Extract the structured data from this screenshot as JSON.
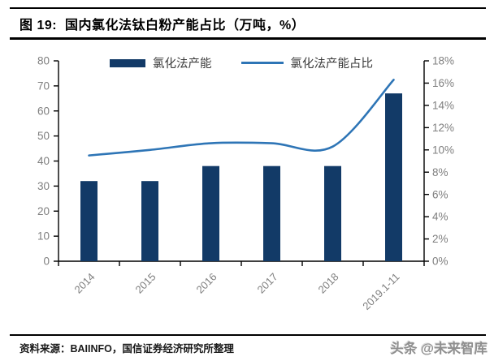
{
  "figure": {
    "title": "图 19:  国内氯化法钛白粉产能占比（万吨，%）",
    "source_note": "资料来源：BAIINFO，国信证券经济研究所整理",
    "watermark": "头条 @未来智库"
  },
  "colors": {
    "bar": "#123A67",
    "line": "#2E75B6",
    "axis": "#000000",
    "tick_label": "#7F7F7F",
    "legend_text": "#3A3A3A"
  },
  "chart_data": {
    "type": "bar",
    "subtype": "combo bar+line, dual axis",
    "categories": [
      "2014",
      "2015",
      "2016",
      "2017",
      "2018",
      "2019.1-11"
    ],
    "series": [
      {
        "name": "氯化法产能",
        "type": "bar",
        "axis": "left",
        "values": [
          32,
          32,
          38,
          38,
          38,
          67
        ]
      },
      {
        "name": "氯化法产能占比",
        "type": "line",
        "axis": "right",
        "values": [
          9.5,
          10.0,
          10.6,
          10.6,
          10.3,
          16.3
        ]
      }
    ],
    "left_axis": {
      "min": 0,
      "max": 80,
      "step": 10,
      "ticks": [
        "0",
        "10",
        "20",
        "30",
        "40",
        "50",
        "60",
        "70",
        "80"
      ]
    },
    "right_axis": {
      "min": 0,
      "max": 18,
      "step": 2,
      "ticks": [
        "0%",
        "2%",
        "4%",
        "6%",
        "8%",
        "10%",
        "12%",
        "14%",
        "16%",
        "18%"
      ]
    },
    "grid": false,
    "legend_position": "top"
  }
}
